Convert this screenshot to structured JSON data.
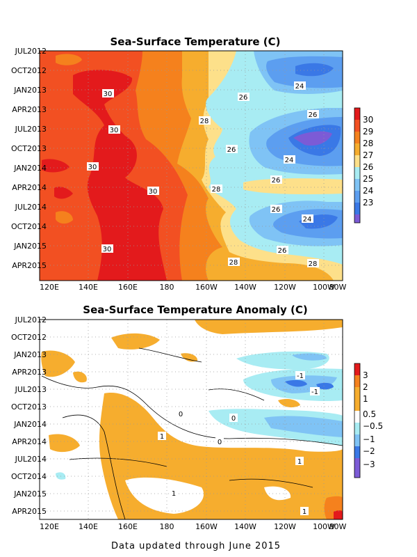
{
  "footer": "Data updated through June 2015",
  "chart_data": [
    {
      "type": "heatmap",
      "title": "Sea-Surface Temperature (C)",
      "y_tick_labels": [
        "JUL2012",
        "OCT2012",
        "JAN2013",
        "APR2013",
        "JUL2013",
        "OCT2013",
        "JAN2014",
        "APR2014",
        "JUL2014",
        "OCT2014",
        "JAN2015",
        "APR2015"
      ],
      "x_tick_labels": [
        "120E",
        "140E",
        "160E",
        "180",
        "160W",
        "140W",
        "120W",
        "100W",
        "80W"
      ],
      "colorbar": {
        "labels": [
          "30",
          "29",
          "28",
          "27",
          "26",
          "25",
          "24",
          "23"
        ],
        "colors": [
          "#e31a1c",
          "#f25022",
          "#f5811d",
          "#f6ad2e",
          "#fde08a",
          "#a8ecf3",
          "#7fc3f5",
          "#5c9ef0",
          "#3a78e6",
          "#7c5bd6"
        ]
      },
      "contour_labels": [
        "30",
        "30",
        "30",
        "30",
        "30",
        "30",
        "28",
        "28",
        "28",
        "28",
        "26",
        "26",
        "26",
        "26",
        "26",
        "26",
        "24",
        "24",
        "24"
      ],
      "grid": true
    },
    {
      "type": "heatmap",
      "title": "Sea-Surface Temperature Anomaly (C)",
      "y_tick_labels": [
        "JUL2012",
        "OCT2012",
        "JAN2013",
        "APR2013",
        "JUL2013",
        "OCT2013",
        "JAN2014",
        "APR2014",
        "JUL2014",
        "OCT2014",
        "JAN2015",
        "APR2015"
      ],
      "x_tick_labels": [
        "120E",
        "140E",
        "160E",
        "180",
        "160W",
        "140W",
        "120W",
        "100W",
        "80W"
      ],
      "colorbar": {
        "labels": [
          "3",
          "2",
          "1",
          "0.5",
          "−0.5",
          "−1",
          "−2",
          "−3"
        ],
        "colors": [
          "#e31a1c",
          "#f5811d",
          "#f6ad2e",
          "#ffffff",
          "#a8ecf3",
          "#7fc3f5",
          "#3a78e6",
          "#7c5bd6"
        ]
      },
      "contour_labels": [
        "1",
        "1",
        "1",
        "1",
        "0",
        "0",
        "0",
        "-1",
        "-1",
        "1"
      ],
      "grid": true
    }
  ]
}
